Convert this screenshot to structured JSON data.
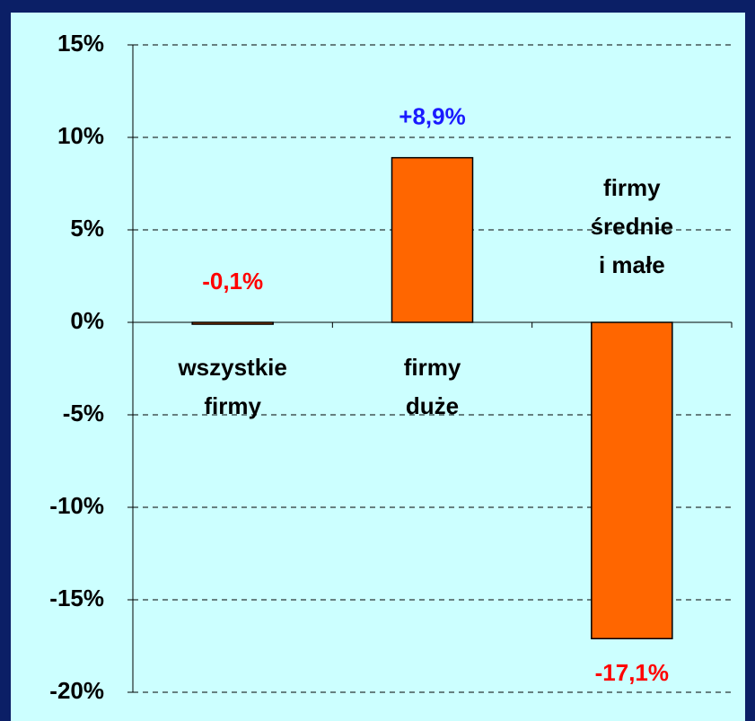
{
  "chart_data": {
    "type": "bar",
    "categories": [
      [
        "wszystkie",
        "firmy"
      ],
      [
        "firmy",
        "duże"
      ],
      [
        "firmy",
        "średnie",
        "i małe"
      ]
    ],
    "values": [
      -0.1,
      8.9,
      -17.1
    ],
    "value_labels": [
      "-0,1%",
      "+8,9%",
      "-17,1%"
    ],
    "value_label_colors": [
      "#ff0000",
      "#1a1aff",
      "#ff0000"
    ],
    "color": "#ff6600",
    "ylim": [
      -20,
      15
    ],
    "yticks": [
      {
        "value": -20,
        "label": "-20%"
      },
      {
        "value": -15,
        "label": "-15%"
      },
      {
        "value": -10,
        "label": "-10%"
      },
      {
        "value": -5,
        "label": "-5%"
      },
      {
        "value": 0,
        "label": "0%"
      },
      {
        "value": 5,
        "label": "5%"
      },
      {
        "value": 10,
        "label": "10%"
      },
      {
        "value": 15,
        "label": "15%"
      }
    ],
    "grid": true
  }
}
